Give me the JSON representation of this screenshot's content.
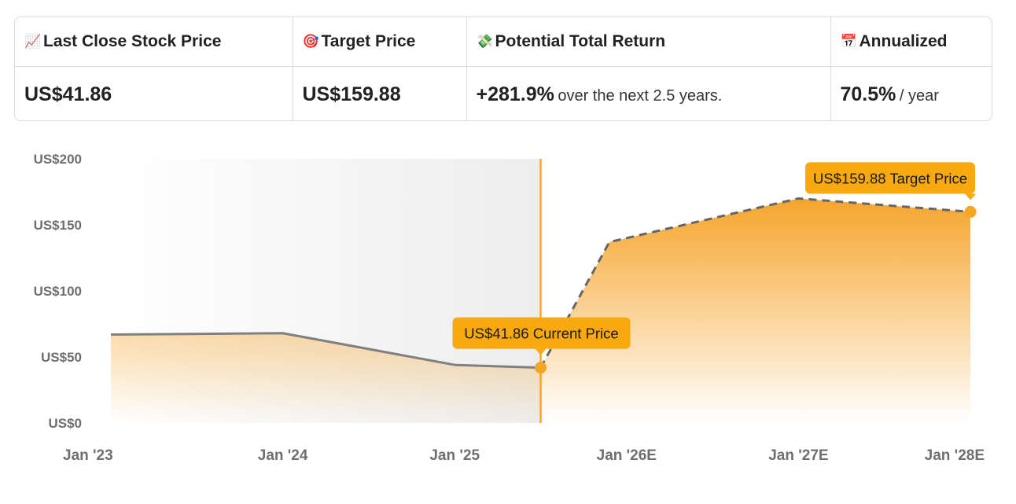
{
  "summary": {
    "headers": [
      {
        "icon": "📈",
        "icon_name": "chart-increasing-icon",
        "label": "Last Close Stock Price"
      },
      {
        "icon": "🎯",
        "icon_name": "target-icon",
        "label": "Target Price"
      },
      {
        "icon": "💸",
        "icon_name": "money-with-wings-icon",
        "label": "Potential Total Return"
      },
      {
        "icon": "📅",
        "icon_name": "calendar-icon",
        "label": "Annualized"
      }
    ],
    "last_close": "US$41.86",
    "target_price": "US$159.88",
    "total_return_value": "+281.9%",
    "total_return_text": "over the next 2.5 years.",
    "annualized_value": "70.5%",
    "annualized_text": "/ year"
  },
  "colors": {
    "accent": "#f5a623",
    "callout": "#f7a90f",
    "line": "#808080",
    "past_shade": "#f2f2f2"
  },
  "chart_data": {
    "type": "area",
    "ylim": [
      0,
      200
    ],
    "yticks": [
      0,
      50,
      100,
      150,
      200
    ],
    "ytick_labels": [
      "US$0",
      "US$50",
      "US$100",
      "US$150",
      "US$200"
    ],
    "xlim": [
      2023.0,
      2028.0
    ],
    "xticks": [
      2023.0,
      2024.0,
      2025.0,
      2026.0,
      2027.0,
      2028.0
    ],
    "xtick_labels": [
      "Jan '23",
      "Jan '24",
      "Jan '25",
      "Jan '26E",
      "Jan '27E",
      "Jan '28E"
    ],
    "historical": {
      "x": [
        2023.0,
        2024.0,
        2025.0,
        2025.5
      ],
      "y": [
        67,
        68,
        44,
        41.86
      ]
    },
    "forecast": {
      "x": [
        2025.5,
        2025.9,
        2027.0,
        2028.0
      ],
      "y": [
        41.86,
        137,
        170,
        159.88
      ]
    },
    "annotations": [
      {
        "label": "US$41.86 Current Price",
        "x": 2025.5,
        "y": 41.86
      },
      {
        "label": "US$159.88 Target Price",
        "x": 2028.0,
        "y": 159.88
      }
    ]
  }
}
